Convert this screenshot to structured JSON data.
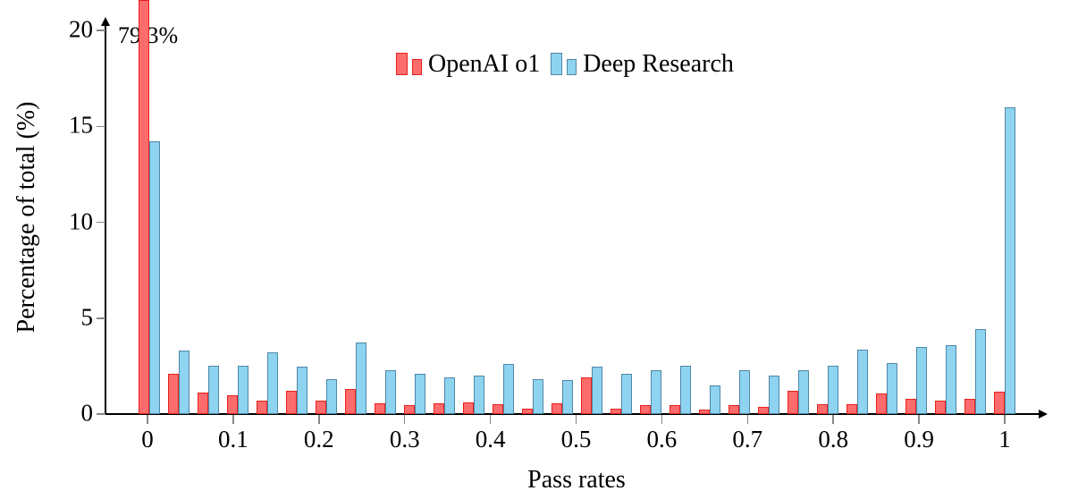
{
  "figure": {
    "xlabel": "Pass rates",
    "ylabel": "Percentage of total (%)",
    "annotation_text": "79.3%"
  },
  "chart_data": {
    "type": "bar",
    "title": "",
    "xlabel": "Pass rates",
    "ylabel": "Percentage of total (%)",
    "ylim": [
      0,
      20
    ],
    "grid": false,
    "legend_position": "top-center",
    "y_tick_values": [
      0,
      5,
      10,
      15,
      20
    ],
    "y_tick_labels": [
      "0",
      "5",
      "10",
      "15",
      "20"
    ],
    "x_tick_values": [
      0,
      0.1,
      0.2,
      0.3,
      0.4,
      0.5,
      0.6,
      0.7,
      0.8,
      0.9,
      1
    ],
    "x_tick_labels": [
      "0",
      "0.1",
      "0.2",
      "0.3",
      "0.4",
      "0.5",
      "0.6",
      "0.7",
      "0.8",
      "0.9",
      "1"
    ],
    "categories": [
      0,
      0.034,
      0.069,
      0.103,
      0.138,
      0.172,
      0.207,
      0.241,
      0.276,
      0.31,
      0.345,
      0.379,
      0.414,
      0.448,
      0.483,
      0.517,
      0.552,
      0.586,
      0.621,
      0.655,
      0.69,
      0.724,
      0.759,
      0.793,
      0.828,
      0.862,
      0.897,
      0.931,
      0.966,
      1
    ],
    "series": [
      {
        "name": "OpenAI o1",
        "fill": "#fd6c6c",
        "stroke": "#e8211d",
        "values": [
          79.3,
          2.1,
          1.1,
          1.0,
          0.7,
          1.2,
          0.7,
          1.3,
          0.55,
          0.45,
          0.55,
          0.6,
          0.5,
          0.3,
          0.55,
          1.9,
          0.3,
          0.45,
          0.45,
          0.25,
          0.45,
          0.35,
          1.2,
          0.5,
          0.5,
          1.05,
          0.8,
          0.7,
          0.8,
          1.15
        ]
      },
      {
        "name": "Deep Research",
        "fill": "#8ed3f0",
        "stroke": "#4f87a5",
        "values": [
          14.2,
          3.3,
          2.5,
          2.5,
          3.2,
          2.45,
          1.8,
          3.75,
          2.3,
          2.1,
          1.9,
          2.0,
          2.6,
          1.8,
          1.75,
          2.45,
          2.1,
          2.3,
          2.5,
          1.5,
          2.3,
          2.0,
          2.3,
          2.5,
          3.35,
          2.65,
          3.5,
          3.6,
          4.45,
          16.0
        ]
      }
    ],
    "annotation": {
      "text": "79.3%",
      "series": "OpenAI o1",
      "bin": 0,
      "note": "bar clipped at top of axis (20%)"
    }
  }
}
